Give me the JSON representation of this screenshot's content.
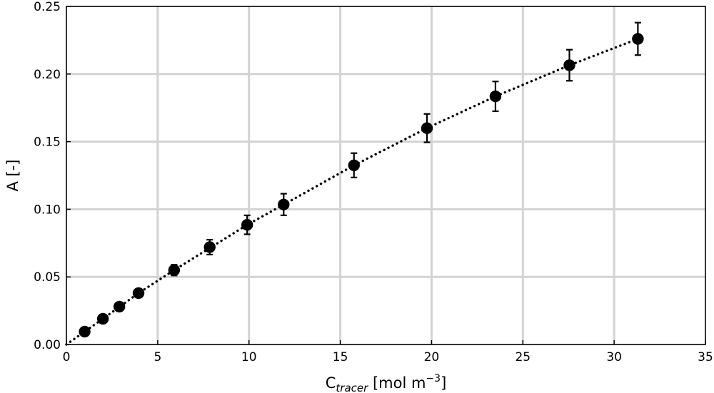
{
  "chart_data": {
    "type": "scatter",
    "title": "",
    "xlabel": {
      "base": "C",
      "subscript": "tracer",
      "units_prefix": " [mol m",
      "units_exponent": "−3",
      "units_suffix": "]"
    },
    "ylabel": "A [-]",
    "xlim": [
      0,
      35
    ],
    "ylim": [
      0,
      0.25
    ],
    "x_ticks": [
      0,
      5,
      10,
      15,
      20,
      25,
      30,
      35
    ],
    "x_tick_labels": [
      "0",
      "5",
      "10",
      "15",
      "20",
      "25",
      "30",
      "35"
    ],
    "y_ticks": [
      0,
      0.05,
      0.1,
      0.15,
      0.2,
      0.25
    ],
    "y_tick_labels": [
      "0.00",
      "0.05",
      "0.10",
      "0.15",
      "0.20",
      "0.25"
    ],
    "grid": true,
    "series": [
      {
        "kind": "points_with_error_bars",
        "color": "#000000",
        "x": [
          1.0,
          2.0,
          2.9,
          3.95,
          5.9,
          7.85,
          9.9,
          11.9,
          15.75,
          19.75,
          23.5,
          27.55,
          31.3
        ],
        "y": [
          0.0095,
          0.019,
          0.028,
          0.038,
          0.055,
          0.072,
          0.0885,
          0.1035,
          0.1325,
          0.16,
          0.1835,
          0.2065,
          0.226
        ],
        "yerr": [
          0.0015,
          0.002,
          0.002,
          0.002,
          0.004,
          0.0055,
          0.007,
          0.008,
          0.009,
          0.0105,
          0.011,
          0.0115,
          0.012
        ]
      },
      {
        "kind": "fit_line",
        "style": "dotted",
        "color": "#000000",
        "x": [
          0,
          2.0,
          3.95,
          5.9,
          9.9,
          11.9,
          15.75,
          19.75,
          23.5,
          27.55,
          31.3
        ],
        "y": [
          0,
          0.019,
          0.038,
          0.055,
          0.0885,
          0.1035,
          0.1325,
          0.16,
          0.1835,
          0.2065,
          0.226
        ]
      }
    ]
  }
}
